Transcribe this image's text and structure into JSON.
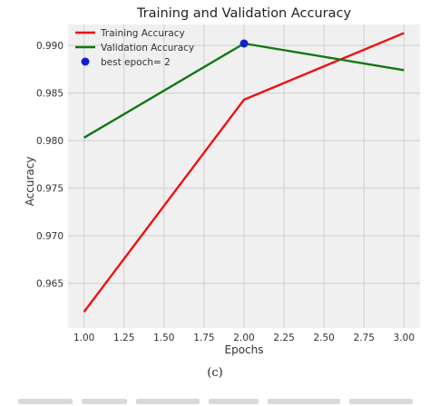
{
  "chart_data": {
    "type": "line",
    "title": "Training and Validation Accuracy",
    "xlabel": "Epochs",
    "ylabel": "Accuracy",
    "xlim": [
      0.9,
      3.1
    ],
    "ylim": [
      0.9603,
      0.9922
    ],
    "x_ticks": [
      "1.00",
      "1.25",
      "1.50",
      "1.75",
      "2.00",
      "2.25",
      "2.50",
      "2.75",
      "3.00"
    ],
    "y_ticks": [
      "0.965",
      "0.970",
      "0.975",
      "0.980",
      "0.985",
      "0.990"
    ],
    "grid": true,
    "legend_position": "top-left",
    "series": [
      {
        "name": "Training Accuracy",
        "color": "#ee1111",
        "x": [
          1,
          2,
          3
        ],
        "y": [
          0.962,
          0.9843,
          0.9913
        ]
      },
      {
        "name": "Validation Accuracy",
        "color": "#117711",
        "x": [
          1,
          2,
          3
        ],
        "y": [
          0.9803,
          0.9902,
          0.9874
        ]
      }
    ],
    "markers": [
      {
        "name": "best epoch= 2",
        "color": "#1020d0",
        "x": 2,
        "y": 0.9902
      }
    ]
  },
  "caption": "(c)"
}
